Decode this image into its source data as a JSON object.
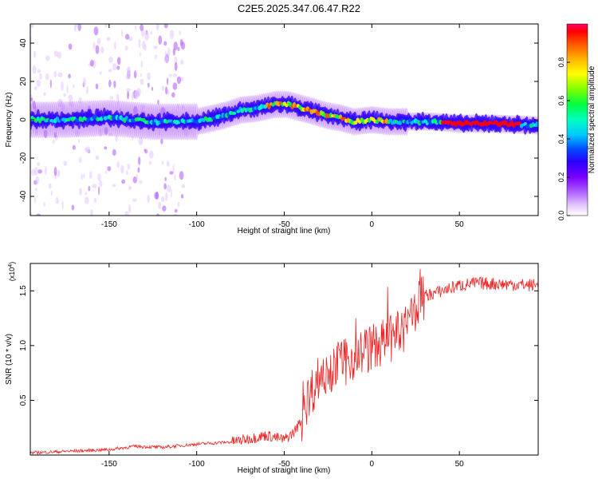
{
  "title": "C2E5.2025.347.06.47.R22",
  "chart_data": [
    {
      "type": "heatmap",
      "name": "spectrogram",
      "xlabel": "Height of straight line (km)",
      "ylabel": "Frequency (Hz)",
      "xlim": [
        -195,
        95
      ],
      "ylim": [
        -50,
        50
      ],
      "x_ticks": [
        -150,
        -100,
        -50,
        0,
        50
      ],
      "y_ticks": [
        -40,
        -20,
        0,
        20,
        40
      ],
      "colorbar": {
        "label": "Normalized spectral amplitude",
        "range": [
          0,
          1
        ],
        "ticks": [
          0.0,
          0.2,
          0.4,
          0.6,
          0.8
        ],
        "colors": [
          "#ffffff",
          "#e6ccff",
          "#b266ff",
          "#7a00ff",
          "#2a00ff",
          "#0050ff",
          "#00c8ff",
          "#00ffc0",
          "#00ff40",
          "#80ff00",
          "#ffff00",
          "#ffb000",
          "#ff5000",
          "#ff0000",
          "#ff0066"
        ]
      },
      "ridge": {
        "x": [
          -195,
          -175,
          -150,
          -125,
          -100,
          -85,
          -75,
          -65,
          -55,
          -48,
          -40,
          -32,
          -25,
          -18,
          -10,
          0,
          10,
          20,
          35,
          50,
          70,
          95
        ],
        "freq": [
          0,
          0,
          1,
          -1,
          -1,
          2,
          5,
          6,
          8,
          8,
          6,
          4,
          2,
          1,
          -1,
          0,
          -1,
          -1,
          -1,
          -2,
          -2,
          -3
        ]
      }
    },
    {
      "type": "line",
      "name": "snr",
      "xlabel": "Height of straight line (km)",
      "ylabel": "SNR (10 * v/v)",
      "y_multiplier": "(x10",
      "y_multiplier_exp": "4",
      "y_multiplier_close": ")",
      "xlim": [
        -195,
        95
      ],
      "ylim": [
        0,
        1.75
      ],
      "x_ticks": [
        -150,
        -100,
        -50,
        0,
        50
      ],
      "y_ticks": [
        0.5,
        1.0,
        1.5
      ],
      "y_tick_labels": [
        "0.5",
        "1.0",
        "1.5"
      ],
      "color": "#ee2222",
      "series": {
        "x": [
          -195,
          -150,
          -135,
          -120,
          -100,
          -80,
          -60,
          -50,
          -45,
          -40,
          -37,
          -30,
          -25,
          -20,
          -15,
          -10,
          -5,
          0,
          10,
          20,
          25,
          30,
          40,
          50,
          60,
          95
        ],
        "y": [
          0.02,
          0.05,
          0.08,
          0.07,
          0.1,
          0.12,
          0.18,
          0.14,
          0.2,
          0.32,
          0.5,
          0.72,
          0.78,
          0.82,
          0.85,
          0.9,
          0.95,
          0.98,
          1.05,
          1.15,
          1.35,
          1.45,
          1.5,
          1.55,
          1.57,
          1.55
        ]
      }
    }
  ]
}
